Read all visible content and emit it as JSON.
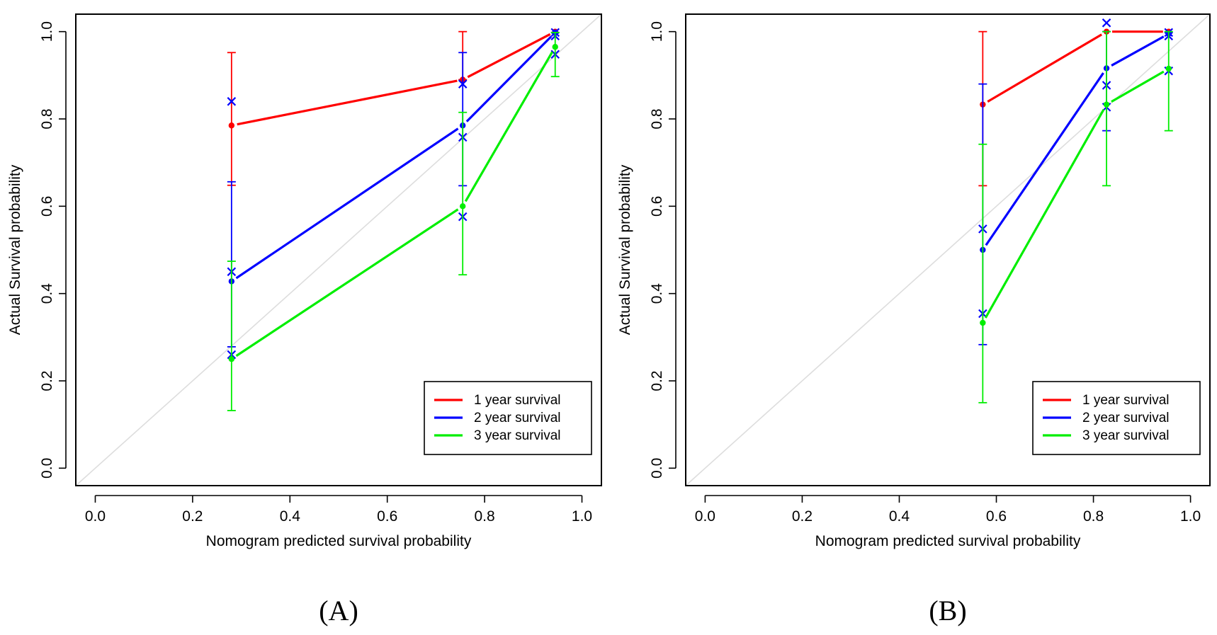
{
  "chart_data": [
    {
      "type": "line",
      "panel_label": "(A)",
      "xlabel": "Nomogram predicted survival probability",
      "ylabel": "Actual Survival probability",
      "xlim": [
        -0.04,
        1.04
      ],
      "ylim": [
        -0.04,
        1.04
      ],
      "xticks": [
        "0.0",
        "0.2",
        "0.4",
        "0.6",
        "0.8",
        "1.0"
      ],
      "yticks": [
        "0.0",
        "0.2",
        "0.4",
        "0.6",
        "0.8",
        "1.0"
      ],
      "reference_line": {
        "from": [
          0,
          0
        ],
        "to": [
          1,
          1
        ],
        "color": "#dddddd"
      },
      "legend_position": "bottom-right",
      "series": [
        {
          "name": "1 year survival",
          "color": "#ff0000",
          "x": [
            0.28,
            0.755,
            0.945
          ],
          "y": [
            0.785,
            0.89,
            1.0
          ],
          "err_low": [
            0.648,
            0.89,
            1.0
          ],
          "err_high": [
            0.952,
            1.0,
            1.0
          ],
          "x_marks": []
        },
        {
          "name": "2 year survival",
          "color": "#0000ff",
          "x": [
            0.28,
            0.755,
            0.945
          ],
          "y": [
            0.428,
            0.785,
            0.998
          ],
          "err_low": [
            0.278,
            0.647,
            0.998
          ],
          "err_high": [
            0.656,
            0.952,
            0.998
          ],
          "x_marks": [
            {
              "x": 0.28,
              "y": 0.84
            },
            {
              "x": 0.28,
              "y": 0.45
            },
            {
              "x": 0.28,
              "y": 0.26
            },
            {
              "x": 0.755,
              "y": 0.88
            },
            {
              "x": 0.755,
              "y": 0.758
            },
            {
              "x": 0.755,
              "y": 0.576
            },
            {
              "x": 0.945,
              "y": 0.998
            },
            {
              "x": 0.945,
              "y": 0.99
            },
            {
              "x": 0.945,
              "y": 0.948
            }
          ]
        },
        {
          "name": "3 year survival",
          "color": "#00ee00",
          "x": [
            0.28,
            0.755,
            0.945
          ],
          "y": [
            0.25,
            0.6,
            0.965
          ],
          "err_low": [
            0.132,
            0.443,
            0.897
          ],
          "err_high": [
            0.474,
            0.815,
            0.998
          ],
          "x_marks": []
        }
      ]
    },
    {
      "type": "line",
      "panel_label": "(B)",
      "xlabel": "Nomogram predicted survival probability",
      "ylabel": "Actual Survival probability",
      "xlim": [
        -0.04,
        1.04
      ],
      "ylim": [
        -0.04,
        1.04
      ],
      "xticks": [
        "0.0",
        "0.2",
        "0.4",
        "0.6",
        "0.8",
        "1.0"
      ],
      "yticks": [
        "0.0",
        "0.2",
        "0.4",
        "0.6",
        "0.8",
        "1.0"
      ],
      "reference_line": {
        "from": [
          0,
          0
        ],
        "to": [
          1,
          1
        ],
        "color": "#dddddd"
      },
      "legend_position": "bottom-right",
      "series": [
        {
          "name": "1 year survival",
          "color": "#ff0000",
          "x": [
            0.572,
            0.827,
            0.955
          ],
          "y": [
            0.833,
            1.0,
            1.0
          ],
          "err_low": [
            0.647,
            1.0,
            1.0
          ],
          "err_high": [
            1.0,
            1.0,
            1.0
          ],
          "x_marks": []
        },
        {
          "name": "2 year survival",
          "color": "#0000ff",
          "x": [
            0.572,
            0.827,
            0.955
          ],
          "y": [
            0.5,
            0.916,
            0.995
          ],
          "err_low": [
            0.283,
            0.773,
            0.995
          ],
          "err_high": [
            0.88,
            1.0,
            0.995
          ],
          "x_marks": [
            {
              "x": 0.572,
              "y": 0.548
            },
            {
              "x": 0.572,
              "y": 0.354
            },
            {
              "x": 0.827,
              "y": 1.02
            },
            {
              "x": 0.827,
              "y": 0.877
            },
            {
              "x": 0.827,
              "y": 0.827
            },
            {
              "x": 0.955,
              "y": 0.998
            },
            {
              "x": 0.955,
              "y": 0.99
            },
            {
              "x": 0.955,
              "y": 0.91
            }
          ]
        },
        {
          "name": "3 year survival",
          "color": "#00ee00",
          "x": [
            0.572,
            0.827,
            0.955
          ],
          "y": [
            0.333,
            0.833,
            0.915
          ],
          "err_low": [
            0.15,
            0.647,
            0.773
          ],
          "err_high": [
            0.742,
            1.0,
            1.0
          ],
          "x_marks": []
        }
      ]
    }
  ]
}
